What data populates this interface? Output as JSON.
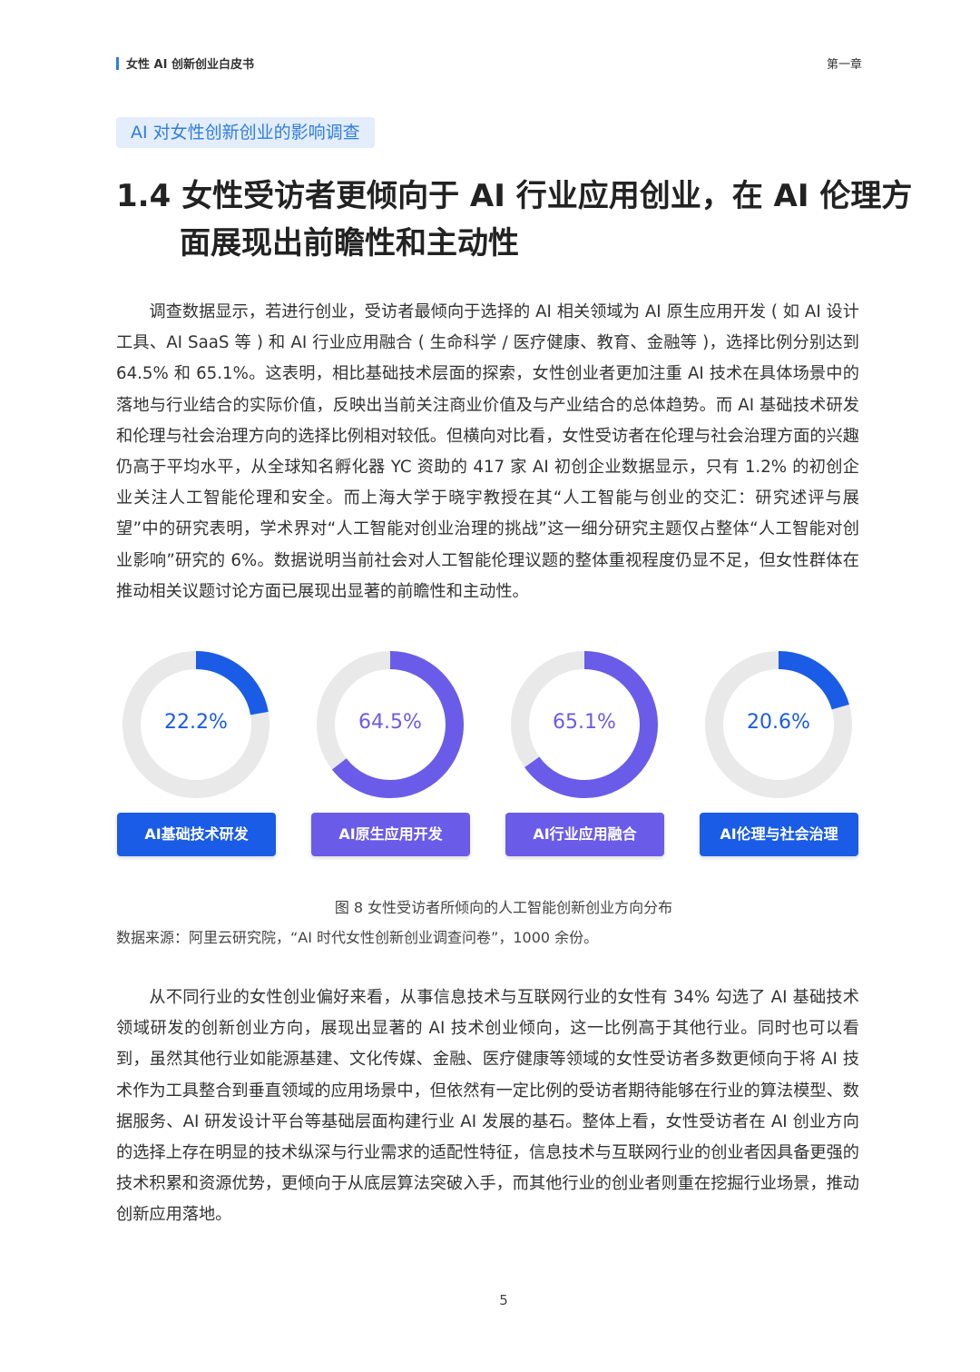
{
  "header": {
    "book_title": "女性 AI 创新创业白皮书",
    "chapter": "第一章"
  },
  "section_tag": "AI 对女性创新创业的影响调查",
  "title": "1.4 女性受访者更倾向于 AI 行业应用创业，在 AI 伦理方面展现出前瞻性和主动性",
  "paragraph1": "调查数据显示，若进行创业，受访者最倾向于选择的 AI 相关领域为 AI 原生应用开发 ( 如 AI 设计工具、AI SaaS 等 ) 和 AI 行业应用融合 ( 生命科学 / 医疗健康、教育、金融等 )，选择比例分别达到 64.5% 和 65.1%。这表明，相比基础技术层面的探索，女性创业者更加注重 AI 技术在具体场景中的落地与行业结合的实际价值，反映出当前关注商业价值及与产业结合的总体趋势。而 AI 基础技术研发和伦理与社会治理方向的选择比例相对较低。但横向对比看，女性受访者在伦理与社会治理方面的兴趣仍高于平均水平，从全球知名孵化器 YC 资助的 417 家 AI 初创企业数据显示，只有 1.2% 的初创企业关注人工智能伦理和安全。而上海大学于晓宇教授在其“人工智能与创业的交汇：研究述评与展望”中的研究表明，学术界对“人工智能对创业治理的挑战”这一细分研究主题仅占整体“人工智能对创业影响”研究的 6%。数据说明当前社会对人工智能伦理议题的整体重视程度仍显不足，但女性群体在推动相关议题讨论方面已展现出显著的前瞻性和主动性。",
  "chart_data": {
    "type": "pie",
    "subtype": "donut",
    "categories": [
      "AI基础技术研发",
      "AI原生应用开发",
      "AI行业应用融合",
      "AI伦理与社会治理"
    ],
    "values": [
      22.2,
      64.5,
      65.1,
      20.6
    ],
    "labels": [
      "22.2%",
      "64.5%",
      "65.1%",
      "20.6%"
    ],
    "unit": "%",
    "colors": [
      "#1a5ce6",
      "#6a5ce8",
      "#6a5ce8",
      "#1a5ce6"
    ],
    "track_color": "#e9e9e9"
  },
  "caption": "图 8 女性受访者所倾向的人工智能创新创业方向分布",
  "source": "数据来源：阿里云研究院，“AI 时代女性创新创业调查问卷”，1000 余份。",
  "paragraph2": "从不同行业的女性创业偏好来看，从事信息技术与互联网行业的女性有 34% 勾选了 AI 基础技术领域研发的创新创业方向，展现出显著的 AI 技术创业倾向，这一比例高于其他行业。同时也可以看到，虽然其他行业如能源基建、文化传媒、金融、医疗健康等领域的女性受访者多数更倾向于将 AI 技术作为工具整合到垂直领域的应用场景中，但依然有一定比例的受访者期待能够在行业的算法模型、数据服务、AI 研发设计平台等基础层面构建行业 AI 发展的基石。整体上看，女性受访者在 AI 创业方向的选择上存在明显的技术纵深与行业需求的适配性特征，信息技术与互联网行业的创业者因具备更强的技术积累和资源优势，更倾向于从底层算法突破入手，而其他行业的创业者则重在挖掘行业场景，推动创新应用落地。",
  "page_number": "5"
}
